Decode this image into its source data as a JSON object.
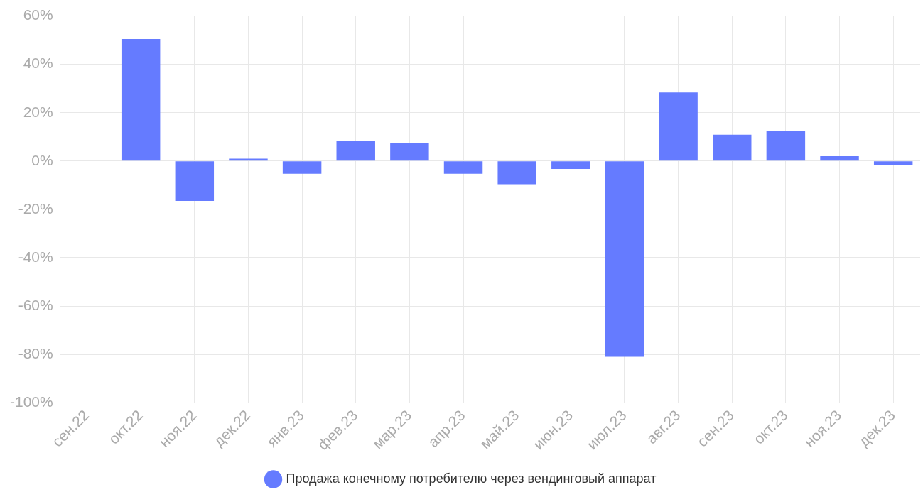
{
  "chart_data": {
    "type": "bar",
    "categories": [
      "сен.22",
      "окт.22",
      "ноя.22",
      "дек.22",
      "янв.23",
      "фев.23",
      "мар.23",
      "апр.23",
      "май.23",
      "июн.23",
      "июл.23",
      "авг.23",
      "сен.23",
      "окт.23",
      "ноя.23",
      "дек.23"
    ],
    "series": [
      {
        "name": "Продажа конечному потребителю через вендинговый аппарат",
        "color": "#657bff",
        "values": [
          null,
          50.5,
          -16.5,
          1,
          -5.3,
          8.3,
          7.3,
          -5.3,
          -9.6,
          -3.3,
          -81,
          28.4,
          10.9,
          12.6,
          2,
          -1.7
        ]
      }
    ],
    "ylim": [
      -100,
      60
    ],
    "yticks": [
      {
        "value": -100,
        "label": "-100%"
      },
      {
        "value": -80,
        "label": "-80%"
      },
      {
        "value": -60,
        "label": "-60%"
      },
      {
        "value": -40,
        "label": "-40%"
      },
      {
        "value": -20,
        "label": "-20%"
      },
      {
        "value": 0,
        "label": "0%"
      },
      {
        "value": 20,
        "label": "20%"
      },
      {
        "value": 40,
        "label": "40%"
      },
      {
        "value": 60,
        "label": "60%"
      }
    ],
    "grid": true,
    "legend": "bottom"
  }
}
